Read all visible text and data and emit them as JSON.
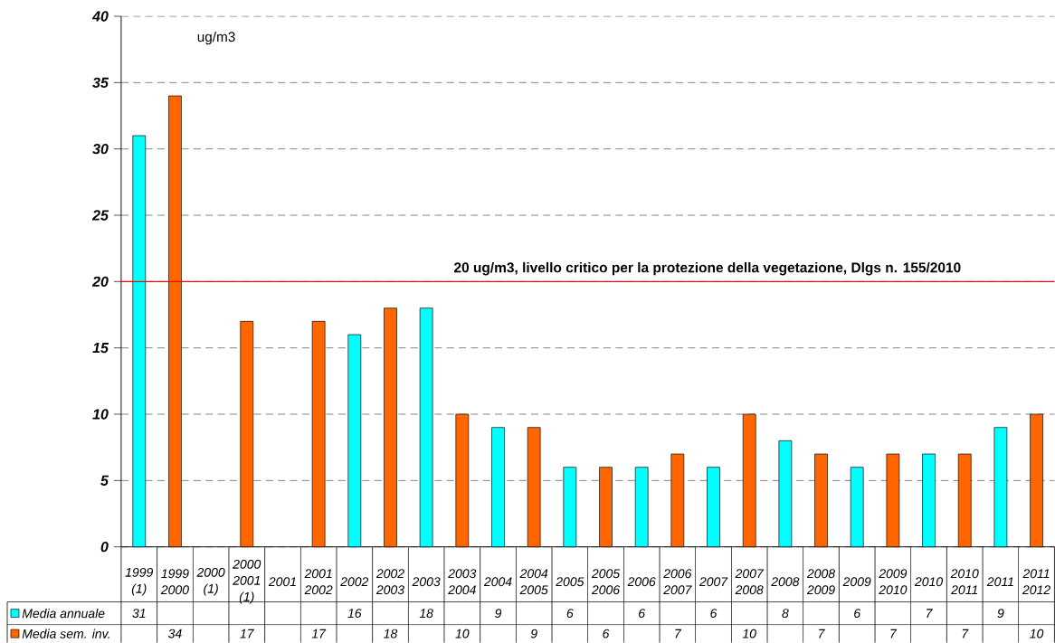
{
  "chart_data": {
    "type": "bar",
    "categories": [
      "1999 (1)",
      "1999 2000",
      "2000 (1)",
      "2000 2001 (1)",
      "2001",
      "2001 2002",
      "2002",
      "2002 2003",
      "2003",
      "2003 2004",
      "2004",
      "2004 2005",
      "2005",
      "2005 2006",
      "2006",
      "2006 2007",
      "2007",
      "2007 2008",
      "2008",
      "2008 2009",
      "2009",
      "2009 2010",
      "2010",
      "2010 2011",
      "2011",
      "2011 2012"
    ],
    "series": [
      {
        "name": "Media annuale",
        "color": "#00ffff",
        "values": [
          31,
          null,
          null,
          null,
          null,
          null,
          16,
          null,
          18,
          null,
          9,
          null,
          6,
          null,
          6,
          null,
          6,
          null,
          8,
          null,
          6,
          null,
          7,
          null,
          9,
          null
        ]
      },
      {
        "name": "Media sem. inv.",
        "color": "#ff6600",
        "values": [
          null,
          34,
          null,
          17,
          null,
          17,
          null,
          18,
          null,
          10,
          null,
          9,
          null,
          6,
          null,
          7,
          null,
          10,
          null,
          7,
          null,
          7,
          null,
          7,
          null,
          10
        ]
      }
    ],
    "ylabel": "ug/m3",
    "ylim": [
      0,
      40
    ],
    "yticks": [
      0,
      5,
      10,
      15,
      20,
      25,
      30,
      35,
      40
    ],
    "grid": "y",
    "legend": "bottom left",
    "data_labels": true,
    "ref_lines": [
      {
        "axis": "y",
        "value": 20,
        "label": "20 ug/m3, livello critico per la protezione della vegetazione, Dlgs n. 155/2010",
        "color": "#ff0000"
      }
    ]
  }
}
